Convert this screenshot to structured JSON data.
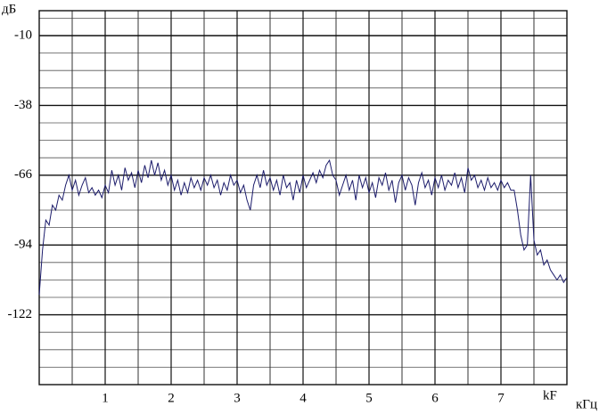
{
  "chart_data": {
    "type": "line",
    "y_axis_label": "дБ",
    "x_axis_label": "кГц",
    "annotation": "kF",
    "xlim": [
      0,
      8
    ],
    "ylim": [
      -150,
      0
    ],
    "xticks": [
      1,
      2,
      3,
      4,
      5,
      6,
      7
    ],
    "xminor": [
      0.5,
      1.5,
      2.5,
      3.5,
      4.5,
      5.5,
      6.5,
      7.5
    ],
    "yticks": [
      -10,
      -38,
      -66,
      -94,
      -122
    ],
    "yminor": [
      -3,
      -17,
      -24,
      -31,
      -45,
      -52,
      -59,
      -73,
      -80,
      -87,
      -101,
      -108,
      -115,
      -129,
      -136,
      -143
    ],
    "grid": true,
    "series": [
      {
        "name": null,
        "color": "#1c1c6b",
        "x": [
          0,
          0.05,
          0.1,
          0.15,
          0.2,
          0.25,
          0.3,
          0.35,
          0.4,
          0.45,
          0.5,
          0.55,
          0.6,
          0.65,
          0.7,
          0.75,
          0.8,
          0.85,
          0.9,
          0.95,
          1,
          1.05,
          1.1,
          1.15,
          1.2,
          1.25,
          1.3,
          1.35,
          1.4,
          1.45,
          1.5,
          1.55,
          1.6,
          1.65,
          1.7,
          1.75,
          1.8,
          1.85,
          1.9,
          1.95,
          2,
          2.05,
          2.1,
          2.15,
          2.2,
          2.25,
          2.3,
          2.35,
          2.4,
          2.45,
          2.5,
          2.55,
          2.6,
          2.65,
          2.7,
          2.75,
          2.8,
          2.85,
          2.9,
          2.95,
          3,
          3.05,
          3.1,
          3.15,
          3.2,
          3.25,
          3.3,
          3.35,
          3.4,
          3.45,
          3.5,
          3.55,
          3.6,
          3.65,
          3.7,
          3.75,
          3.8,
          3.85,
          3.9,
          3.95,
          4,
          4.05,
          4.1,
          4.15,
          4.2,
          4.25,
          4.3,
          4.35,
          4.4,
          4.45,
          4.5,
          4.55,
          4.6,
          4.65,
          4.7,
          4.75,
          4.8,
          4.85,
          4.9,
          4.95,
          5,
          5.05,
          5.1,
          5.15,
          5.2,
          5.25,
          5.3,
          5.35,
          5.4,
          5.45,
          5.5,
          5.55,
          5.6,
          5.65,
          5.7,
          5.75,
          5.8,
          5.85,
          5.9,
          5.95,
          6,
          6.05,
          6.1,
          6.15,
          6.2,
          6.25,
          6.3,
          6.35,
          6.4,
          6.45,
          6.5,
          6.55,
          6.6,
          6.65,
          6.7,
          6.75,
          6.8,
          6.85,
          6.9,
          6.95,
          7,
          7.05,
          7.1,
          7.15,
          7.2,
          7.25,
          7.3,
          7.35,
          7.4,
          7.45,
          7.5,
          7.55,
          7.6,
          7.65,
          7.7,
          7.75,
          7.8,
          7.85,
          7.9,
          7.95,
          8
        ],
        "values": [
          -114,
          -96,
          -84,
          -86,
          -78,
          -80,
          -74,
          -76,
          -70,
          -66,
          -72,
          -68,
          -74,
          -70,
          -67,
          -73,
          -71,
          -74,
          -72,
          -75,
          -70,
          -73,
          -64,
          -70,
          -66,
          -72,
          -63,
          -68,
          -65,
          -71,
          -64,
          -69,
          -62,
          -67,
          -60,
          -66,
          -61,
          -68,
          -64,
          -70,
          -66,
          -72,
          -68,
          -74,
          -69,
          -73,
          -67,
          -71,
          -68,
          -72,
          -67,
          -70,
          -66,
          -71,
          -68,
          -74,
          -69,
          -72,
          -66,
          -70,
          -68,
          -73,
          -70,
          -76,
          -80,
          -70,
          -66,
          -71,
          -64,
          -70,
          -67,
          -72,
          -68,
          -74,
          -66,
          -71,
          -69,
          -76,
          -68,
          -73,
          -66,
          -71,
          -68,
          -65,
          -69,
          -64,
          -67,
          -62,
          -60,
          -66,
          -68,
          -74,
          -70,
          -66,
          -72,
          -68,
          -76,
          -66,
          -71,
          -67,
          -73,
          -69,
          -75,
          -67,
          -70,
          -65,
          -72,
          -68,
          -77,
          -69,
          -66,
          -72,
          -67,
          -70,
          -78,
          -69,
          -65,
          -71,
          -68,
          -74,
          -67,
          -71,
          -66,
          -72,
          -68,
          -70,
          -65,
          -71,
          -67,
          -73,
          -63,
          -68,
          -66,
          -71,
          -68,
          -72,
          -67,
          -71,
          -69,
          -72,
          -68,
          -71,
          -69,
          -72,
          -72,
          -80,
          -90,
          -96,
          -94,
          -66,
          -92,
          -98,
          -96,
          -102,
          -100,
          -104,
          -106,
          -108,
          -106,
          -109,
          -107
        ]
      }
    ]
  }
}
